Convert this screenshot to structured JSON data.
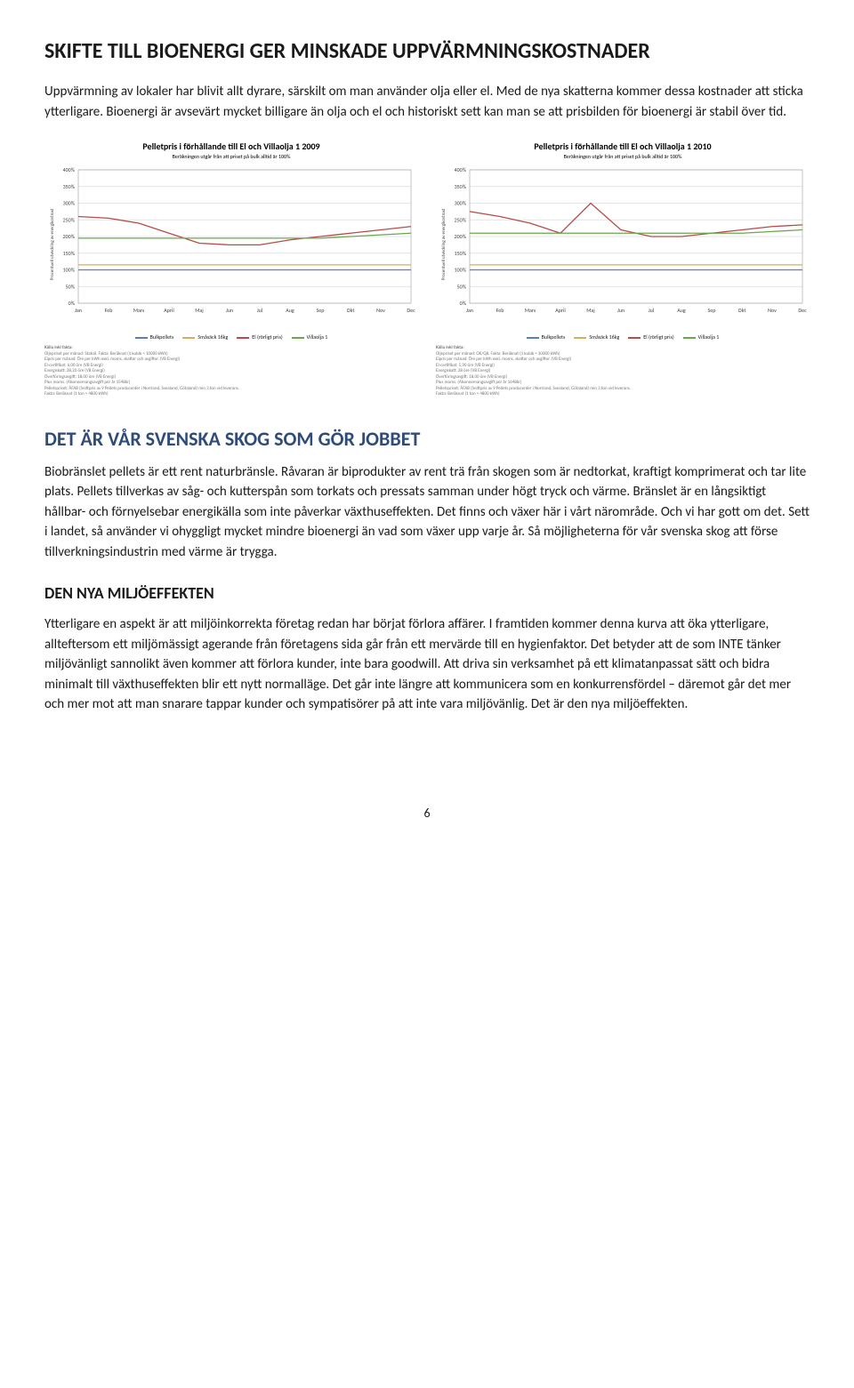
{
  "page": {
    "title": "SKIFTE TILL BIOENERGI GER MINSKADE UPPVÄRMNINGSKOSTNADER",
    "intro": "Uppvärmning av lokaler har blivit allt dyrare, särskilt om man använder olja eller el. Med de nya skatterna kommer dessa kostnader att sticka ytterligare. Bioenergi är avsevärt mycket billigare än olja och el och historiskt sett kan man se att prisbilden för bioenergi är stabil över tid.",
    "section2_title": "DET ÄR VÅR SVENSKA SKOG SOM GÖR JOBBET",
    "section2_body": "Biobränslet pellets är ett rent naturbränsle. Råvaran är biprodukter av rent trä från skogen som är nedtorkat, kraftigt komprimerat och tar lite plats. Pellets tillverkas av såg- och kutterspån som torkats och pressats samman under högt tryck och värme. Bränslet är en långsiktigt hållbar- och förnyelsebar energikälla som inte påverkar växthuseffekten. Det finns och växer här i vårt närområde. Och vi har gott om det. Sett i landet, så använder vi ohyggligt mycket mindre bioenergi än vad som växer upp varje år. Så möjligheterna för vår svenska skog att förse tillverkningsindustrin med värme är trygga.",
    "section3_title": "DEN NYA MILJÖEFFEKTEN",
    "section3_body": "Ytterligare en aspekt är att miljöinkorrekta företag redan har börjat förlora affärer. I framtiden kommer denna kurva att öka ytterligare, allteftersom ett miljömässigt agerande från företagens sida går från ett mervärde till en hygienfaktor. Det betyder att de som INTE tänker miljövänligt sannolikt även kommer att förlora kunder, inte bara goodwill. Att driva sin verksamhet på ett klimatanpassat sätt och bidra minimalt till växthuseffekten blir ett nytt normalläge. Det går inte längre att kommunicera som en konkurrensfördel – däremot går det mer och mer mot att man snarare tappar kunder och sympatisörer på att inte vara miljövänlig. Det är den nya miljöeffekten.",
    "page_number": "6"
  },
  "charts": {
    "left": {
      "title": "Pelletpris i förhållande till El och Villaolja 1 2009",
      "subtitle": "Beräkningen utgår från att priset på bulk alltid är 100%",
      "ylabel": "Procentuell utveckling av energikostnad",
      "y_ticks": [
        "0%",
        "50%",
        "100%",
        "150%",
        "200%",
        "250%",
        "300%",
        "350%",
        "400%"
      ],
      "x_ticks": [
        "Jan",
        "Feb",
        "Mars",
        "April",
        "Maj",
        "Jun",
        "Jul",
        "Aug",
        "Sep",
        "Okt",
        "Nov",
        "Dec"
      ],
      "series": [
        {
          "name": "Bulkpellets",
          "color": "#5a7fbf",
          "values": [
            100,
            100,
            100,
            100,
            100,
            100,
            100,
            100,
            100,
            100,
            100,
            100
          ]
        },
        {
          "name": "Småsäck 16kg",
          "color": "#d6ad5c",
          "values": [
            115,
            115,
            115,
            115,
            115,
            115,
            115,
            115,
            115,
            115,
            115,
            115
          ]
        },
        {
          "name": "El (rörligt pris)",
          "color": "#b94a48",
          "values": [
            260,
            255,
            240,
            210,
            180,
            175,
            175,
            190,
            200,
            210,
            220,
            230
          ]
        },
        {
          "name": "Villaolja 1",
          "color": "#6aa84f",
          "values": [
            195,
            195,
            195,
            195,
            195,
            195,
            195,
            195,
            195,
            200,
            205,
            210
          ]
        }
      ],
      "ylim": [
        0,
        400
      ],
      "grid_color": "#dcdcdc",
      "footnotes_title": "Källa inkl fakta:",
      "footnotes": [
        "Oljepriset per månad: Statoil. Fakta: Beräknat (1 kubik ≈ 10000 kWh)",
        "Elpris per månad: Öre per kWh exkl. moms, skatter och avgifter. (VB Energi)",
        "El-certifikat: 6,00 öre (VB Energi)",
        "Energiskatt: 28,20 öre (VB Energi)",
        "Överföringsavgift: 18,00 öre (VB Energi)",
        "Plus moms. (Abonnemangsavgift per år 1548kr)",
        "Pelletspriset: ÅFAB (Snittpris av 9 Pellets producenter i Norrland, Svealand, Götaland) min 3 ton vid leverans.",
        "Fakta: Beräknat (1 ton ≈ 4800 kWh)"
      ]
    },
    "right": {
      "title": "Pelletpris i förhållande till El och Villaolja 1 2010",
      "subtitle": "Beräkningen utgår från att priset på bulk alltid är 100%",
      "ylabel": "Procentuell utveckling av energikostnad",
      "y_ticks": [
        "0%",
        "50%",
        "100%",
        "150%",
        "200%",
        "250%",
        "300%",
        "350%",
        "400%"
      ],
      "x_ticks": [
        "Jan",
        "Feb",
        "Mars",
        "April",
        "Maj",
        "Jun",
        "Jul",
        "Aug",
        "Sep",
        "Okt",
        "Nov",
        "Dec"
      ],
      "series": [
        {
          "name": "Bulkpellets",
          "color": "#5a7fbf",
          "values": [
            100,
            100,
            100,
            100,
            100,
            100,
            100,
            100,
            100,
            100,
            100,
            100
          ]
        },
        {
          "name": "Småsäck 16kg",
          "color": "#d6ad5c",
          "values": [
            115,
            115,
            115,
            115,
            115,
            115,
            115,
            115,
            115,
            115,
            115,
            115
          ]
        },
        {
          "name": "El (rörligt pris)",
          "color": "#b94a48",
          "values": [
            275,
            260,
            240,
            210,
            300,
            220,
            200,
            200,
            210,
            220,
            230,
            235
          ]
        },
        {
          "name": "Villaolja 1",
          "color": "#6aa84f",
          "values": [
            210,
            210,
            210,
            210,
            210,
            210,
            210,
            210,
            210,
            210,
            215,
            220
          ]
        }
      ],
      "ylim": [
        0,
        400
      ],
      "grid_color": "#dcdcdc",
      "footnotes_title": "Källa inkl fakta:",
      "footnotes": [
        "Oljepriset per månad: OK/Q8. Fakta: Beräknat (1 kubik ≈ 10000 kWh)",
        "Elpris per månad: Öre per kWh exkl. moms, skatter och avgifter. (VB Energi)",
        "El-certifikat: 5,90 öre (VB Energi)",
        "Energiskatt: 28 öre (VB Energi)",
        "Överföringsavgift: 18,00 öre (VB Energi)",
        "Plus moms. (Abonnemangsavgift per år 1648kr)",
        "Pelletspriset: ÅFAB (Snittpris av 9 Pellets producenter i Norrland, Svealand, Götaland) min 3 ton vid leverans.",
        "Fakta: Beräknat (1 ton ≈ 4800 kWh)"
      ]
    }
  }
}
